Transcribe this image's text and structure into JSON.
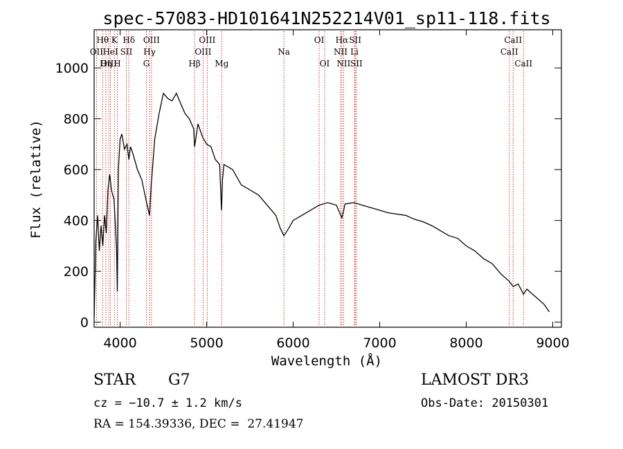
{
  "chart_data": {
    "type": "line",
    "title": "spec-57083-HD101641N252214V01_sp11-118.fits",
    "xlabel": "Wavelength (Å)",
    "ylabel": "Flux (relative)",
    "xlim": [
      3700,
      9100
    ],
    "ylim": [
      -20,
      1150
    ],
    "x_ticks": [
      4000,
      5000,
      6000,
      7000,
      8000,
      9000
    ],
    "y_ticks": [
      0,
      200,
      400,
      600,
      800,
      1000
    ],
    "series": [
      {
        "x": [
          3700,
          3720,
          3740,
          3760,
          3780,
          3800,
          3820,
          3840,
          3860,
          3880,
          3900,
          3930,
          3960,
          3968,
          3980,
          4000,
          4020,
          4050,
          4080,
          4101,
          4120,
          4150,
          4200,
          4250,
          4300,
          4340,
          4360,
          4400,
          4450,
          4500,
          4550,
          4600,
          4650,
          4700,
          4750,
          4800,
          4850,
          4861,
          4900,
          4950,
          5000,
          5050,
          5100,
          5150,
          5172,
          5183,
          5200,
          5300,
          5400,
          5500,
          5600,
          5700,
          5800,
          5850,
          5893,
          5950,
          6000,
          6100,
          6200,
          6300,
          6400,
          6500,
          6563,
          6600,
          6700,
          6800,
          6900,
          7000,
          7100,
          7200,
          7300,
          7400,
          7500,
          7600,
          7700,
          7800,
          7900,
          8000,
          8100,
          8200,
          8300,
          8400,
          8498,
          8542,
          8600,
          8662,
          8700,
          8800,
          8900,
          8960
        ],
        "y": [
          20,
          320,
          420,
          280,
          380,
          300,
          420,
          350,
          520,
          580,
          520,
          480,
          280,
          120,
          600,
          720,
          740,
          680,
          700,
          640,
          690,
          660,
          600,
          560,
          480,
          420,
          540,
          720,
          820,
          900,
          880,
          870,
          900,
          860,
          820,
          800,
          760,
          690,
          780,
          730,
          700,
          690,
          640,
          620,
          440,
          560,
          620,
          600,
          540,
          520,
          500,
          460,
          420,
          370,
          340,
          370,
          400,
          420,
          440,
          460,
          470,
          460,
          410,
          465,
          470,
          460,
          450,
          440,
          430,
          425,
          420,
          405,
          395,
          380,
          360,
          340,
          330,
          300,
          280,
          250,
          230,
          190,
          160,
          140,
          150,
          110,
          130,
          100,
          70,
          40
        ]
      }
    ],
    "lines": [
      {
        "label": "Hθ",
        "wl": 3798,
        "row": 1
      },
      {
        "label": "OII",
        "wl": 3727,
        "row": 2
      },
      {
        "label": "OIII",
        "wl": 3869,
        "row": 3
      },
      {
        "label": "Hη",
        "wl": 3835,
        "row": 3
      },
      {
        "label": "HeI",
        "wl": 3889,
        "row": 2
      },
      {
        "label": "K",
        "wl": 3934,
        "row": 1
      },
      {
        "label": "H",
        "wl": 3968,
        "row": 3
      },
      {
        "label": "SII",
        "wl": 4072,
        "row": 2
      },
      {
        "label": "Hδ",
        "wl": 4101,
        "row": 1
      },
      {
        "label": "OIII",
        "wl": 4363,
        "row": 1
      },
      {
        "label": "Hγ",
        "wl": 4340,
        "row": 2
      },
      {
        "label": "G",
        "wl": 4304,
        "row": 3
      },
      {
        "label": "Hβ",
        "wl": 4861,
        "row": 3
      },
      {
        "label": "OIII",
        "wl": 5007,
        "row": 1
      },
      {
        "label": "OIII",
        "wl": 4959,
        "row": 2
      },
      {
        "label": "Mg",
        "wl": 5175,
        "row": 3
      },
      {
        "label": "Na",
        "wl": 5893,
        "row": 2
      },
      {
        "label": "OI",
        "wl": 6300,
        "row": 1
      },
      {
        "label": "OI",
        "wl": 6364,
        "row": 3
      },
      {
        "label": "Hα",
        "wl": 6563,
        "row": 1
      },
      {
        "label": "NII",
        "wl": 6548,
        "row": 2
      },
      {
        "label": "NII",
        "wl": 6583,
        "row": 3
      },
      {
        "label": "SII",
        "wl": 6717,
        "row": 1
      },
      {
        "label": "Li",
        "wl": 6708,
        "row": 2
      },
      {
        "label": "SII",
        "wl": 6731,
        "row": 3
      },
      {
        "label": "CaII",
        "wl": 8542,
        "row": 1
      },
      {
        "label": "CaII",
        "wl": 8498,
        "row": 2
      },
      {
        "label": "CaII",
        "wl": 8662,
        "row": 3
      }
    ]
  },
  "info": {
    "class_label": "STAR",
    "subclass": "G7",
    "survey": "LAMOST DR3",
    "redshift_text": "cz = −10.7 ± 1.2 km/s",
    "obs_date": "Obs-Date: 20150301",
    "coords": "RA = 154.39336, DEC =  27.41947"
  },
  "colors": {
    "line_marker": "#cc2020",
    "spectrum": "#000000"
  }
}
